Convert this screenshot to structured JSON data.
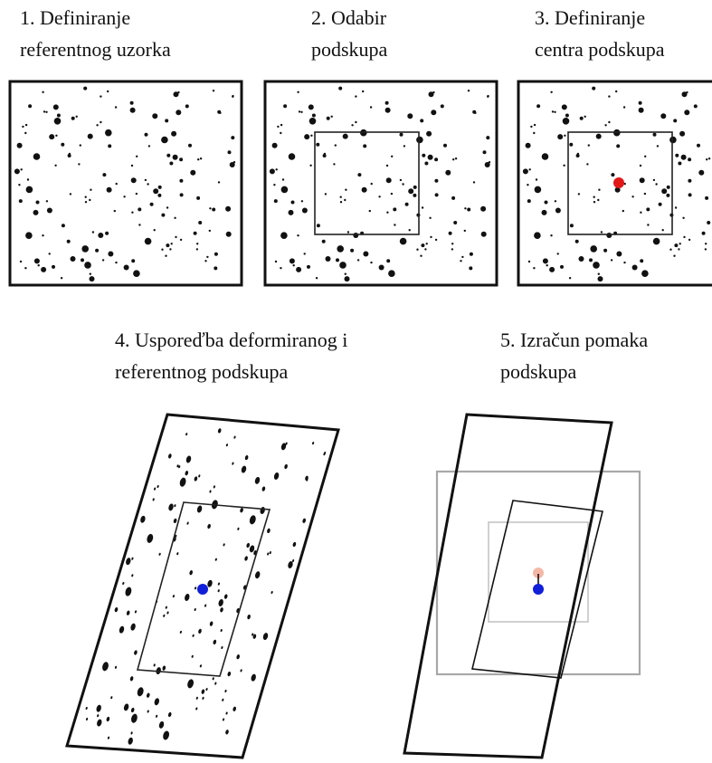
{
  "steps": [
    {
      "id": 1,
      "title_lines": [
        "1. Definiranje",
        "referentnog uzorka"
      ]
    },
    {
      "id": 2,
      "title_lines": [
        "2. Odabir",
        "podskupa"
      ]
    },
    {
      "id": 3,
      "title_lines": [
        "3. Definiranje",
        "centra podskupa"
      ]
    },
    {
      "id": 4,
      "title_lines": [
        "4. Usporeďba deformiranog i",
        "referentnog podskupa"
      ]
    },
    {
      "id": 5,
      "title_lines": [
        "5. Izračun pomaka",
        "podskupa"
      ]
    }
  ],
  "colors": {
    "frame": "#111111",
    "speckle": "#111111",
    "reference_center": "#e01818",
    "reference_center_faded": "#f4b8a8",
    "deformed_center": "#1020d8",
    "reference_outline": "#a8a8a8",
    "reference_subset_outline": "#c4c4c4"
  }
}
